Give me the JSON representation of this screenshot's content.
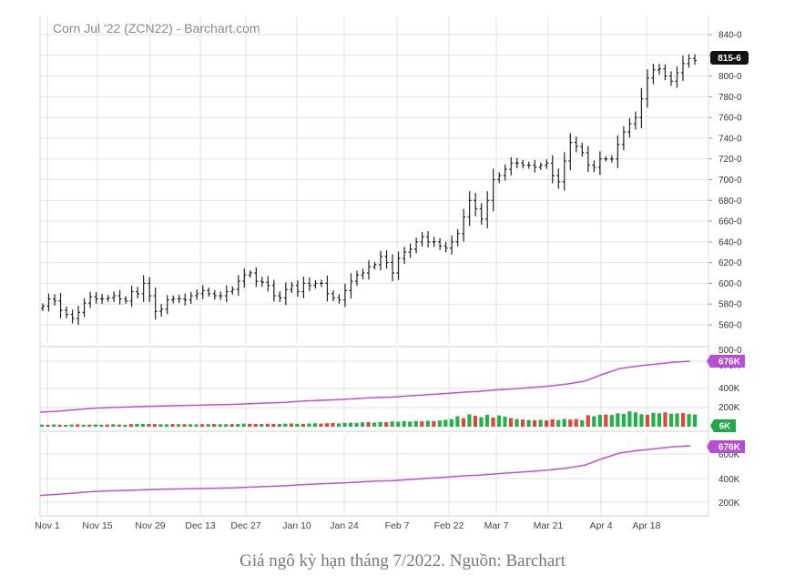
{
  "caption": "Giá ngô kỳ hạn tháng 7/2022. Nguồn: Barchart",
  "chart_data": {
    "type": "ohlc",
    "title": "Corn Jul '22 (ZCN22) - Barchart.com",
    "last_price_label": "815-6",
    "colors": {
      "bars": "#222222",
      "volume_up": "#21b24b",
      "volume_down": "#e8423a",
      "open_interest": "#c04fd8",
      "grid": "#e2e2e2",
      "price_badge": "#111111",
      "volume_badge": "#1fa84a",
      "oi_badge": "#b74fd3"
    },
    "price_axis": {
      "ticks": [
        "840-0",
        "820-0",
        "800-0",
        "780-0",
        "760-0",
        "740-0",
        "720-0",
        "700-0",
        "680-0",
        "660-0",
        "640-0",
        "620-0",
        "600-0",
        "580-0",
        "560-0"
      ],
      "range": [
        548,
        846
      ],
      "cut_off_tick": "500-0"
    },
    "x_axis": {
      "labels": [
        "Nov 1",
        "Nov 15",
        "Nov 29",
        "Dec 13",
        "Dec 27",
        "Jan 10",
        "Jan 24",
        "Feb 7",
        "Feb 22",
        "Mar 7",
        "Mar 21",
        "Apr 4",
        "Apr 18"
      ]
    },
    "price_series": [
      578,
      585,
      583,
      574,
      570,
      566,
      572,
      581,
      587,
      585,
      585,
      586,
      588,
      585,
      583,
      592,
      590,
      600,
      588,
      573,
      575,
      584,
      585,
      585,
      584,
      588,
      590,
      593,
      590,
      588,
      588,
      592,
      594,
      602,
      608,
      610,
      602,
      601,
      598,
      588,
      586,
      594,
      598,
      592,
      600,
      598,
      600,
      600,
      590,
      586,
      584,
      593,
      602,
      608,
      610,
      616,
      618,
      626,
      620,
      610,
      624,
      630,
      633,
      640,
      645,
      640,
      640,
      636,
      634,
      640,
      648,
      664,
      680,
      672,
      662,
      680,
      700,
      704,
      710,
      716,
      716,
      714,
      714,
      712,
      714,
      716,
      704,
      698,
      718,
      736,
      732,
      726,
      714,
      712,
      720,
      720,
      720,
      734,
      746,
      754,
      760,
      778,
      798,
      806,
      807,
      800,
      795,
      803,
      812,
      817,
      815
    ],
    "volume_panel": {
      "axis_ticks": [
        "676K",
        "400K",
        "200K"
      ],
      "volume_badge": "6K",
      "volume_scale_max": 200000,
      "open_interest_badge": "676K",
      "volume": [
        22000,
        20000,
        24000,
        21000,
        19000,
        23000,
        25000,
        20000,
        22000,
        24000,
        21000,
        23000,
        26000,
        22000,
        20000,
        27000,
        30000,
        29000,
        28000,
        27000,
        26000,
        25000,
        28000,
        27000,
        26000,
        25000,
        24000,
        26000,
        27000,
        28000,
        25000,
        26000,
        27000,
        29000,
        32000,
        30000,
        28000,
        29000,
        31000,
        30000,
        29000,
        32000,
        34000,
        31000,
        30000,
        33000,
        35000,
        32000,
        36000,
        38000,
        34000,
        40000,
        42000,
        38000,
        45000,
        48000,
        43000,
        50000,
        47000,
        55000,
        52000,
        58000,
        54000,
        60000,
        56000,
        62000,
        58000,
        65000,
        72000,
        80000,
        110000,
        90000,
        130000,
        115000,
        100000,
        125000,
        95000,
        118000,
        105000,
        90000,
        80000,
        75000,
        70000,
        68000,
        72000,
        65000,
        78000,
        70000,
        82000,
        75000,
        80000,
        68000,
        120000,
        110000,
        125000,
        128000,
        122000,
        140000,
        135000,
        160000,
        150000,
        130000,
        125000,
        145000,
        140000,
        150000,
        135000,
        138000,
        142000,
        132000,
        128000
      ],
      "volume_up": [
        true,
        false,
        true,
        false,
        true,
        true,
        false,
        true,
        false,
        true,
        true,
        false,
        true,
        false,
        true,
        false,
        true,
        true,
        false,
        false,
        true,
        true,
        false,
        true,
        false,
        true,
        true,
        false,
        true,
        false,
        true,
        true,
        false,
        true,
        true,
        false,
        false,
        true,
        false,
        false,
        true,
        true,
        false,
        true,
        false,
        true,
        true,
        false,
        false,
        false,
        true,
        true,
        true,
        true,
        true,
        false,
        true,
        true,
        false,
        true,
        true,
        true,
        true,
        true,
        false,
        true,
        false,
        true,
        true,
        true,
        true,
        false,
        true,
        false,
        true,
        true,
        false,
        true,
        true,
        false,
        true,
        false,
        true,
        false,
        true,
        false,
        false,
        true,
        true,
        false,
        false,
        true,
        false,
        true,
        true,
        false,
        true,
        true,
        true,
        true,
        true,
        true,
        false,
        true,
        true,
        false,
        true,
        true,
        false,
        true,
        true
      ],
      "open_interest": [
        150000,
        160000,
        175000,
        190000,
        198000,
        203000,
        210000,
        214000,
        218000,
        222000,
        226000,
        230000,
        238000,
        245000,
        252000,
        265000,
        272000,
        280000,
        290000,
        300000,
        305000,
        318000,
        330000,
        342000,
        355000,
        365000,
        380000,
        392000,
        405000,
        420000,
        440000,
        470000,
        540000,
        600000,
        625000,
        645000,
        665000,
        676000
      ]
    },
    "oi_panel": {
      "axis_ticks": [
        "676K",
        "600K",
        "400K",
        "200K"
      ],
      "open_interest_badge": "676K",
      "open_interest": [
        150000,
        160000,
        175000,
        190000,
        198000,
        203000,
        210000,
        214000,
        218000,
        222000,
        226000,
        230000,
        238000,
        245000,
        252000,
        265000,
        272000,
        280000,
        290000,
        300000,
        305000,
        318000,
        330000,
        342000,
        355000,
        365000,
        380000,
        392000,
        405000,
        420000,
        440000,
        470000,
        540000,
        600000,
        625000,
        645000,
        665000,
        676000
      ]
    }
  }
}
